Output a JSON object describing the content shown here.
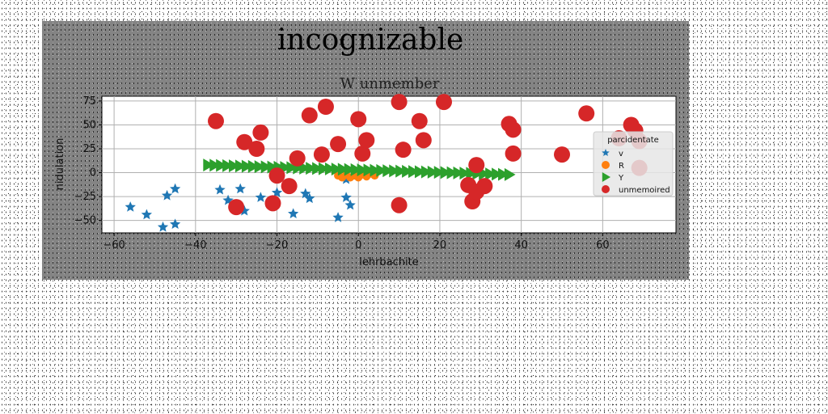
{
  "chart_data": {
    "type": "scatter",
    "suptitle": "incognizable",
    "title": "W unmember",
    "xlabel": "lehrbachite",
    "ylabel": "nidulation",
    "xlim": [
      -63,
      78
    ],
    "ylim": [
      -63,
      80
    ],
    "xticks": [
      -60,
      -40,
      -20,
      0,
      20,
      40,
      60
    ],
    "yticks": [
      -50,
      -25,
      0,
      25,
      50,
      75
    ],
    "grid": true,
    "legend": {
      "title": "parcidentate",
      "placement": "right"
    },
    "series": [
      {
        "name": "v",
        "marker": "star",
        "color": "#1f77b4",
        "points": [
          [
            -56,
            -36
          ],
          [
            -52,
            -44
          ],
          [
            -48,
            -57
          ],
          [
            -47,
            -24
          ],
          [
            -45,
            -17
          ],
          [
            -45,
            -54
          ],
          [
            -34,
            -18
          ],
          [
            -32,
            -29
          ],
          [
            -29,
            -17
          ],
          [
            -28,
            -40
          ],
          [
            -24,
            -26
          ],
          [
            -20,
            -21
          ],
          [
            -16,
            -43
          ],
          [
            -13,
            -22
          ],
          [
            -12,
            -27
          ],
          [
            -5,
            -47
          ],
          [
            -3,
            -26
          ],
          [
            -2,
            -34
          ],
          [
            -3,
            -7
          ]
        ]
      },
      {
        "name": "R",
        "marker": "circle",
        "color": "#ff7f0e",
        "points": [
          [
            -5,
            -3
          ],
          [
            -4,
            -5
          ],
          [
            -3,
            -2
          ],
          [
            -2,
            -5
          ],
          [
            -1,
            -3
          ],
          [
            0,
            -5
          ],
          [
            1,
            -2
          ],
          [
            2,
            -4
          ],
          [
            3,
            -1
          ],
          [
            4,
            -3
          ]
        ]
      },
      {
        "name": "Y",
        "marker": "triangle-right",
        "color": "#2ca02c",
        "x_start": -37,
        "x_end": 37,
        "y_start": 8,
        "y_end": -2,
        "count": 48
      },
      {
        "name": "unmemoired",
        "marker": "circle",
        "color": "#d62728",
        "points": [
          [
            -35,
            54
          ],
          [
            -28,
            32
          ],
          [
            -25,
            25
          ],
          [
            -24,
            42
          ],
          [
            -12,
            60
          ],
          [
            -15,
            15
          ],
          [
            -8,
            69
          ],
          [
            -9,
            19
          ],
          [
            -5,
            30
          ],
          [
            0,
            56
          ],
          [
            1,
            20
          ],
          [
            2,
            34
          ],
          [
            10,
            74
          ],
          [
            11,
            24
          ],
          [
            15,
            54
          ],
          [
            16,
            34
          ],
          [
            21,
            74
          ],
          [
            27,
            -13
          ],
          [
            28,
            -30
          ],
          [
            29,
            -20
          ],
          [
            29,
            8
          ],
          [
            31,
            -14
          ],
          [
            37,
            51
          ],
          [
            38,
            45
          ],
          [
            38,
            20
          ],
          [
            50,
            19
          ],
          [
            56,
            62
          ],
          [
            64,
            36
          ],
          [
            67,
            50
          ],
          [
            68,
            44
          ],
          [
            69,
            33
          ],
          [
            69,
            5
          ],
          [
            -30,
            -36
          ],
          [
            -21,
            -32
          ],
          [
            -20,
            -3
          ],
          [
            -17,
            -14
          ],
          [
            10,
            -34
          ]
        ]
      }
    ]
  }
}
